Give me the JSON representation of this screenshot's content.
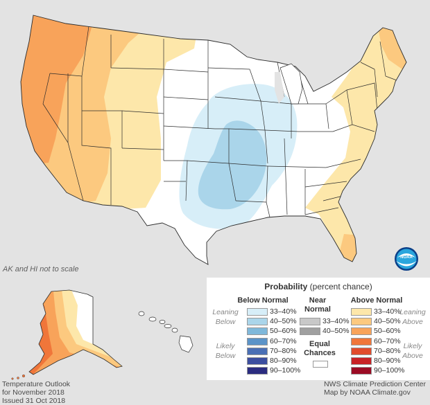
{
  "map": {
    "scale_note": "AK and HI not to scale",
    "logo_text": "NOAA",
    "colors": {
      "background": "#e3e3e3",
      "land": "#ffffff",
      "border": "#2b2b2b",
      "above_33_40": "#fde7aa",
      "above_40_50": "#fcc97f",
      "above_50_60": "#f8a35a",
      "above_60_70": "#f0763a",
      "below_33_40": "#d7eef8",
      "below_40_50": "#aad5ea"
    }
  },
  "legend": {
    "title_bold": "Probability",
    "title_rest": " (percent chance)",
    "below_head": "Below Normal",
    "near_head_line1": "Near",
    "near_head_line2": "Normal",
    "above_head": "Above Normal",
    "leaning_below_line1": "Leaning",
    "leaning_below_line2": "Below",
    "likely_below_line1": "Likely",
    "likely_below_line2": "Below",
    "leaning_above_line1": "Leaning",
    "leaning_above_line2": "Above",
    "likely_above_line1": "Likely",
    "likely_above_line2": "Above",
    "equal_line1": "Equal",
    "equal_line2": "Chances",
    "below_bins": [
      {
        "label": "33–40%",
        "color": "#d7eef8"
      },
      {
        "label": "40–50%",
        "color": "#aad5ea"
      },
      {
        "label": "50–60%",
        "color": "#7fb8da"
      },
      {
        "label": "60–70%",
        "color": "#5b93c8"
      },
      {
        "label": "70–80%",
        "color": "#4a6fb5"
      },
      {
        "label": "80–90%",
        "color": "#3c4e9f"
      },
      {
        "label": "90–100%",
        "color": "#2b2c80"
      }
    ],
    "near_bins": [
      {
        "label": "33–40%",
        "color": "#c8c8c8"
      },
      {
        "label": "40–50%",
        "color": "#a0a0a0"
      }
    ],
    "above_bins": [
      {
        "label": "33–40%",
        "color": "#fde7aa"
      },
      {
        "label": "40–50%",
        "color": "#fcc97f"
      },
      {
        "label": "50–60%",
        "color": "#f8a35a"
      },
      {
        "label": "60–70%",
        "color": "#f0763a"
      },
      {
        "label": "70–80%",
        "color": "#e14b2c"
      },
      {
        "label": "80–90%",
        "color": "#c82226"
      },
      {
        "label": "90–100%",
        "color": "#9b0b24"
      }
    ]
  },
  "footer": {
    "left_line1": "Temperature Outlook",
    "left_line2": "for November 2018",
    "left_line3": "Issued 31 Oct 2018",
    "right_line1": "NWS Climate Prediction Center",
    "right_line2": "Map by NOAA Climate.gov"
  }
}
